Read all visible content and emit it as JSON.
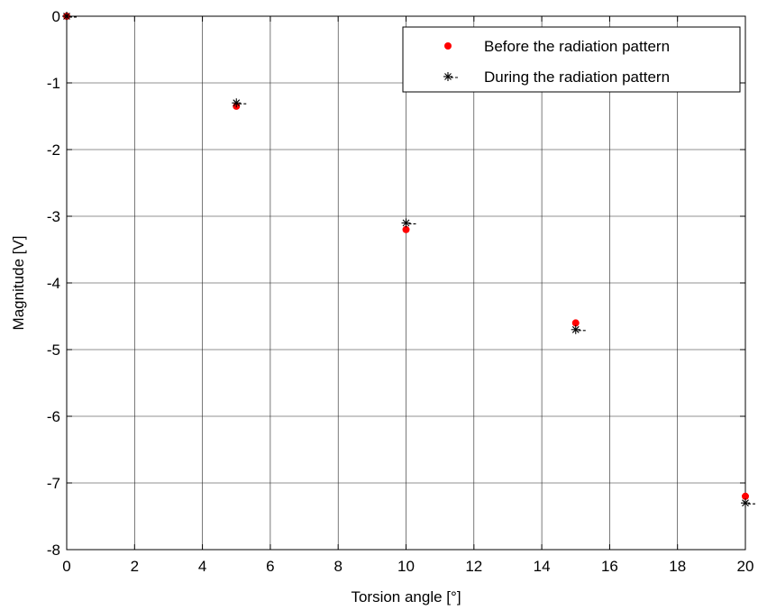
{
  "chart_data": {
    "type": "scatter",
    "xlabel": "Torsion angle [°]",
    "ylabel": "Magnitude [V]",
    "xlim": [
      0,
      20
    ],
    "ylim": [
      -8,
      0
    ],
    "x_ticks": [
      0,
      2,
      4,
      6,
      8,
      10,
      12,
      14,
      16,
      18,
      20
    ],
    "y_ticks": [
      0,
      -1,
      -2,
      -3,
      -4,
      -5,
      -6,
      -7,
      -8
    ],
    "x_tick_labels": [
      "0",
      "2",
      "4",
      "6",
      "8",
      "10",
      "12",
      "14",
      "16",
      "18",
      "20"
    ],
    "y_tick_labels": [
      "0",
      "-1",
      "-2",
      "-3",
      "-4",
      "-5",
      "-6",
      "-7",
      "-8"
    ],
    "grid": true,
    "legend_position": "top-right",
    "series": [
      {
        "name": "Before the radiation pattern",
        "marker": "dot",
        "color": "#ff0000",
        "x": [
          0,
          5,
          10,
          15,
          20
        ],
        "y": [
          0,
          -1.35,
          -3.2,
          -4.6,
          -7.2
        ]
      },
      {
        "name": "During the radiation pattern",
        "marker": "star",
        "color": "#000000",
        "x": [
          0,
          5,
          10,
          15,
          20
        ],
        "y": [
          0,
          -1.3,
          -3.1,
          -4.7,
          -7.3
        ]
      }
    ]
  }
}
